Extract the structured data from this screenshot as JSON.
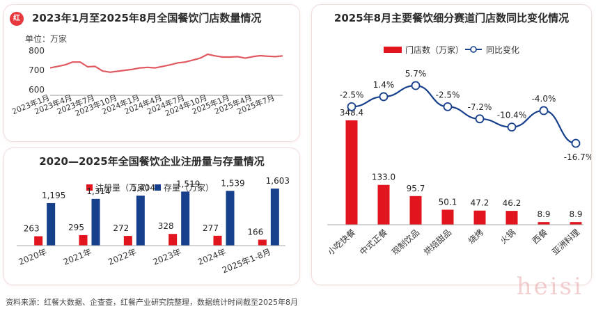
{
  "line_panel": {
    "title": "2023年1月至2025年8月全国餐饮门店数量情况",
    "unit": "单位：万家",
    "badge": "红"
  },
  "reg_panel": {
    "title": "2020—2025年全国餐饮企业注册量与存量情况"
  },
  "seg_panel": {
    "title": "2025年8月主要餐饮细分赛道门店数同比变化情况"
  },
  "footer": "资料来源：红餐大数据、企查查，红餐产业研究院整理，数据统计时间截至2025年8月",
  "signature": "heisi",
  "colors": {
    "red": "#e2141e",
    "navy": "#163f8c",
    "line": "#e05860"
  },
  "chart_data": [
    {
      "id": "store_count",
      "type": "line",
      "ylim": [
        600,
        800
      ],
      "yticks": [
        600,
        700,
        800
      ],
      "xtick_labels": [
        "2023年1月",
        "2023年4月",
        "2023年7月",
        "2023年10月",
        "2024年1月",
        "2024年4月",
        "2024年7月",
        "2024年10月",
        "2025年1月",
        "2025年4月",
        "2025年7月"
      ],
      "x": [
        "2023-01",
        "2023-02",
        "2023-03",
        "2023-04",
        "2023-05",
        "2023-06",
        "2023-07",
        "2023-08",
        "2023-09",
        "2023-10",
        "2023-11",
        "2023-12",
        "2024-01",
        "2024-02",
        "2024-03",
        "2024-04",
        "2024-05",
        "2024-06",
        "2024-07",
        "2024-08",
        "2024-09",
        "2024-10",
        "2024-11",
        "2024-12",
        "2025-01",
        "2025-02",
        "2025-03",
        "2025-04",
        "2025-05",
        "2025-06",
        "2025-07",
        "2025-08"
      ],
      "values": [
        712,
        720,
        728,
        742,
        742,
        718,
        720,
        696,
        690,
        695,
        700,
        705,
        712,
        715,
        712,
        720,
        728,
        738,
        742,
        752,
        762,
        782,
        774,
        768,
        768,
        770,
        762,
        770,
        775,
        772,
        770,
        774
      ]
    },
    {
      "id": "registrations",
      "type": "bar",
      "categories": [
        "2020年",
        "2021年",
        "2022年",
        "2023年",
        "2024年",
        "2025年1-8月"
      ],
      "ylim": [
        0,
        1800
      ],
      "series": [
        {
          "name": "注册量（万家）",
          "values": [
            263,
            295,
            272,
            328,
            277,
            166
          ],
          "labels": [
            "263",
            "295",
            "272",
            "328",
            "277",
            "166"
          ]
        },
        {
          "name": "存量（万家）",
          "values": [
            1195,
            1314,
            1404,
            1519,
            1539,
            1603
          ],
          "labels": [
            "1,195",
            "1,314",
            "1,404",
            "1,519",
            "1,539",
            "1,603"
          ]
        }
      ],
      "legend": "top-center"
    },
    {
      "id": "segments",
      "type": "bar",
      "categories": [
        "小吃快餐",
        "中式正餐",
        "现制饮品",
        "烘焙甜品",
        "烧烤",
        "火锅",
        "西餐",
        "亚洲料理"
      ],
      "series": [
        {
          "name": "门店数（万家）",
          "values": [
            348.4,
            133.0,
            95.7,
            50.1,
            47.2,
            46.2,
            8.9,
            8.9
          ],
          "labels": [
            "348.4",
            "133.0",
            "95.7",
            "50.1",
            "47.2",
            "46.2",
            "8.9",
            "8.9"
          ]
        },
        {
          "name": "同比变化",
          "type": "line",
          "values": [
            -2.5,
            1.4,
            5.7,
            -2.5,
            -7.2,
            -10.4,
            -4.0,
            -16.7
          ],
          "labels": [
            "-2.5%",
            "1.4%",
            "5.7%",
            "-2.5%",
            "-7.2%",
            "-10.4%",
            "-4.0%",
            "-16.7%"
          ]
        }
      ],
      "legend": "top-center"
    }
  ]
}
